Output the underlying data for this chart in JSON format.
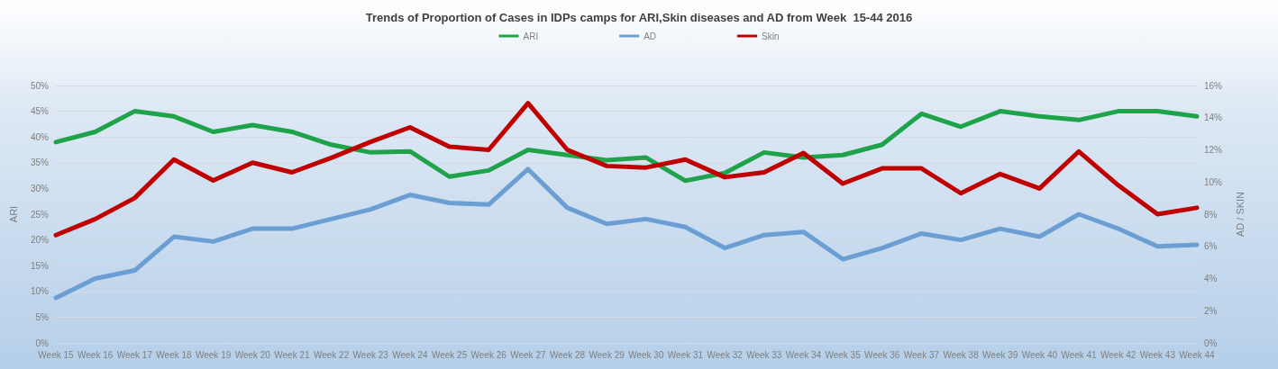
{
  "chart_data": {
    "type": "line",
    "title": "Trends of Proportion of Cases in IDPs camps for ARI,Skin diseases and AD from Week  15-44 2016",
    "categories": [
      "Week 15",
      "Week 16",
      "Week 17",
      "Week 18",
      "Week 19",
      "Week 20",
      "Week 21",
      "Week 22",
      "Week 23",
      "Week 24",
      "Week 25",
      "Week 26",
      "Week 27",
      "Week 28",
      "Week 29",
      "Week 30",
      "Week 31",
      "Week 32",
      "Week 33",
      "Week 34",
      "Week 35",
      "Week 36",
      "Week 37",
      "Week 38",
      "Week 39",
      "Week 40",
      "Week 41",
      "Week 42",
      "Week 43",
      "Week 44"
    ],
    "series": [
      {
        "name": "ARI",
        "color": "#1ea34b",
        "values": [
          39,
          41,
          45,
          44,
          41,
          42.3,
          41,
          38.5,
          37,
          37.2,
          32.3,
          33.5,
          37.5,
          36.5,
          35.5,
          36,
          31.5,
          33,
          37,
          36,
          36.5,
          38.5,
          44.5,
          42,
          45,
          44,
          43.3,
          45,
          45,
          44
        ]
      },
      {
        "name": "AD",
        "color": "#6b9fd3",
        "axis": "y2",
        "values": [
          2.8,
          4.0,
          4.5,
          6.6,
          6.3,
          7.1,
          7.1,
          7.7,
          8.3,
          9.2,
          8.7,
          8.6,
          10.8,
          8.4,
          7.4,
          7.7,
          7.2,
          5.9,
          6.7,
          6.9,
          5.2,
          5.9,
          6.8,
          6.4,
          7.1,
          6.6,
          8.0,
          7.1,
          6.0,
          6.1
        ]
      },
      {
        "name": "Skin",
        "color": "#c00000",
        "axis": "y2",
        "values": [
          6.7,
          7.7,
          9.0,
          11.4,
          10.1,
          11.2,
          10.6,
          11.5,
          12.5,
          13.4,
          12.2,
          12.0,
          14.9,
          12.0,
          11.0,
          10.9,
          11.4,
          10.3,
          10.6,
          11.8,
          9.9,
          10.85,
          10.85,
          9.3,
          10.5,
          9.6,
          11.9,
          9.8,
          8.0,
          8.4
        ]
      }
    ],
    "ylabel": "ARI",
    "y2label": "AD / SKIN",
    "ylim": [
      0,
      50
    ],
    "yticks": [
      {
        "value": 0,
        "label": "0%"
      },
      {
        "value": 5,
        "label": "5%"
      },
      {
        "value": 10,
        "label": "10%"
      },
      {
        "value": 15,
        "label": "15%"
      },
      {
        "value": 20,
        "label": "20%"
      },
      {
        "value": 25,
        "label": "25%"
      },
      {
        "value": 30,
        "label": "30%"
      },
      {
        "value": 35,
        "label": "35%"
      },
      {
        "value": 40,
        "label": "40%"
      },
      {
        "value": 45,
        "label": "45%"
      },
      {
        "value": 50,
        "label": "50%"
      }
    ],
    "y2lim": [
      0,
      16
    ],
    "y2ticks": [
      {
        "value": 0,
        "label": "0%"
      },
      {
        "value": 2,
        "label": "2%"
      },
      {
        "value": 4,
        "label": "4%"
      },
      {
        "value": 6,
        "label": "6%"
      },
      {
        "value": 8,
        "label": "8%"
      },
      {
        "value": 10,
        "label": "10%"
      },
      {
        "value": 12,
        "label": "12%"
      },
      {
        "value": 14,
        "label": "14%"
      },
      {
        "value": 16,
        "label": "16%"
      }
    ],
    "grid": "y",
    "legend": "top",
    "marker": "none",
    "line_style": "solid"
  }
}
